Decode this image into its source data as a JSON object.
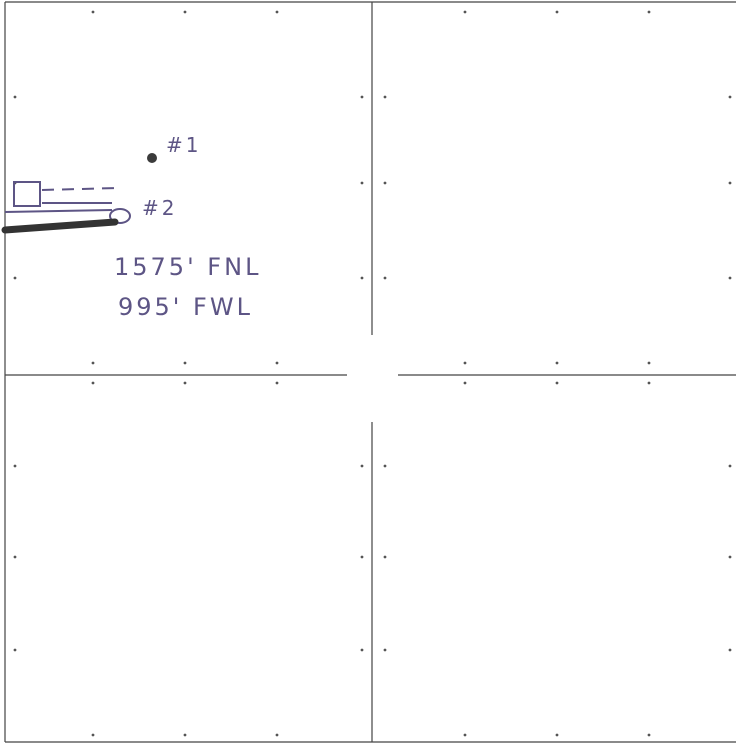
{
  "labels": {
    "well_1": "#1",
    "well_2": "#2",
    "fnl": "1575' FNL",
    "fwl": "995' FWL"
  }
}
